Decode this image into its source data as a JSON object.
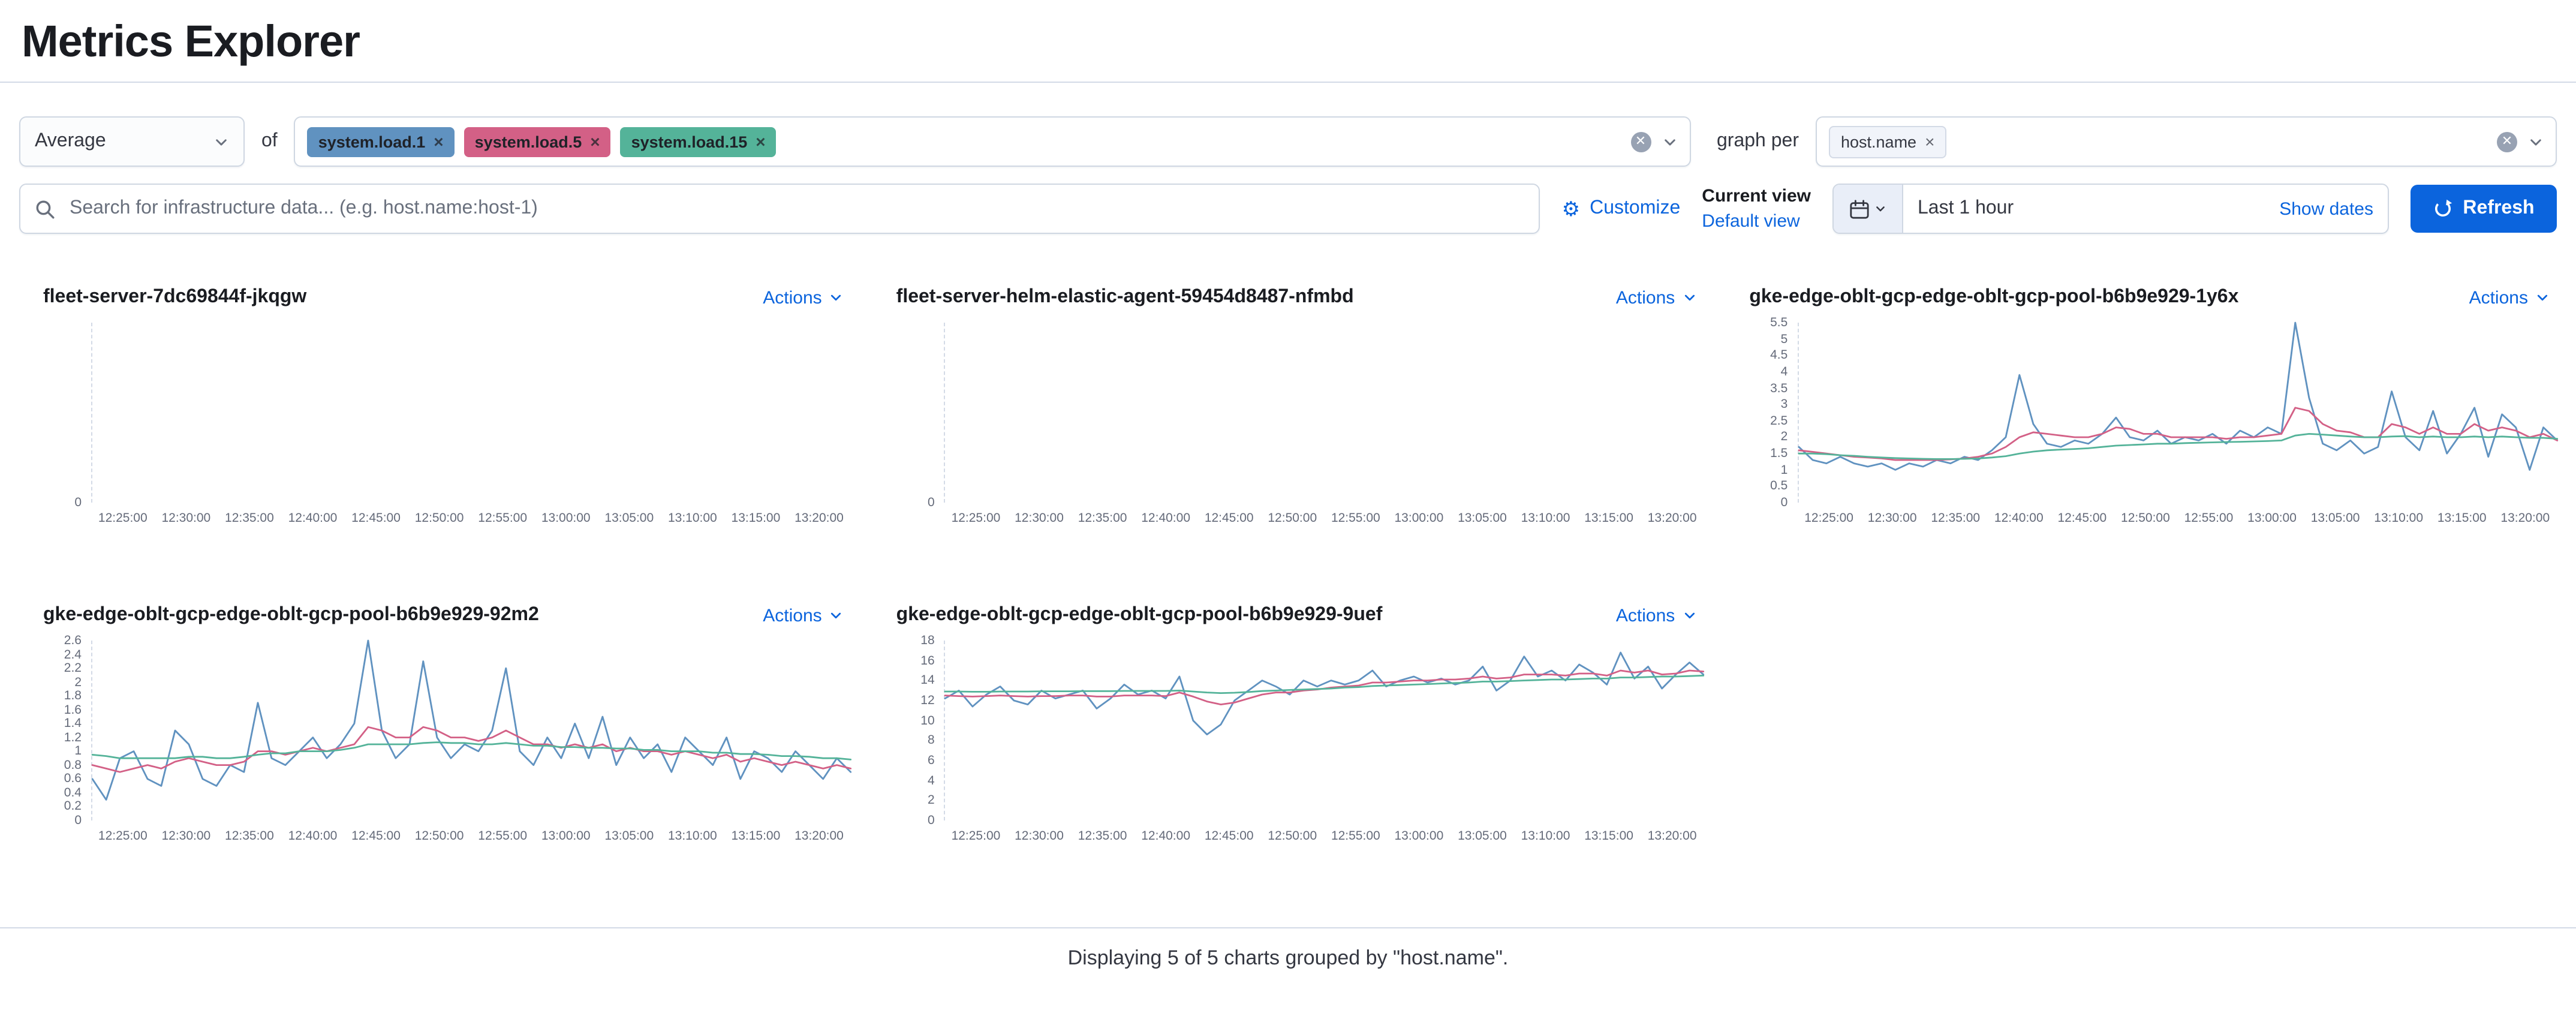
{
  "page": {
    "title": "Metrics Explorer"
  },
  "controls": {
    "aggregation": {
      "value": "Average"
    },
    "of_label": "of",
    "metrics": [
      {
        "label": "system.load.1",
        "color": "#6092C0"
      },
      {
        "label": "system.load.5",
        "color": "#D36086"
      },
      {
        "label": "system.load.15",
        "color": "#54B399"
      }
    ],
    "graph_per_label": "graph per",
    "group_by": [
      {
        "label": "host.name"
      }
    ],
    "search": {
      "placeholder": "Search for infrastructure data... (e.g. host.name:host-1)"
    },
    "customize_label": "Customize",
    "current_view_label": "Current view",
    "default_view_label": "Default view",
    "time_range": {
      "value": "Last 1 hour",
      "show_dates_label": "Show dates"
    },
    "refresh_label": "Refresh"
  },
  "icons": {
    "search": "magnifier-icon",
    "clear": "cross-in-circle-icon",
    "dropdown": "chevron-down-icon",
    "customize": "gear-icon",
    "calendar": "calendar-icon",
    "refresh": "refresh-icon",
    "remove_pill": "cross-icon"
  },
  "colors": {
    "primary": "#0b64dd",
    "link": "#0b64dd",
    "border": "#d3dae6",
    "text": "#343741"
  },
  "footer": {
    "text": "Displaying 5 of 5 charts grouped by \"host.name\"."
  },
  "chart_data": [
    {
      "type": "line",
      "title": "fleet-server-7dc69844f-jkqgw",
      "actions_label": "Actions",
      "x_ticks": [
        "12:25:00",
        "12:30:00",
        "12:35:00",
        "12:40:00",
        "12:45:00",
        "12:50:00",
        "12:55:00",
        "13:00:00",
        "13:05:00",
        "13:10:00",
        "13:15:00",
        "13:20:00"
      ],
      "y_ticks": [
        0
      ],
      "ylim": [
        0,
        1
      ],
      "grid": false,
      "legend": "none",
      "series": []
    },
    {
      "type": "line",
      "title": "fleet-server-helm-elastic-agent-59454d8487-nfmbd",
      "actions_label": "Actions",
      "x_ticks": [
        "12:25:00",
        "12:30:00",
        "12:35:00",
        "12:40:00",
        "12:45:00",
        "12:50:00",
        "12:55:00",
        "13:00:00",
        "13:05:00",
        "13:10:00",
        "13:15:00",
        "13:20:00"
      ],
      "y_ticks": [
        0
      ],
      "ylim": [
        0,
        1
      ],
      "grid": false,
      "legend": "none",
      "series": []
    },
    {
      "type": "line",
      "title": "gke-edge-oblt-gcp-edge-oblt-gcp-pool-b6b9e929-1y6x",
      "actions_label": "Actions",
      "x_ticks": [
        "12:25:00",
        "12:30:00",
        "12:35:00",
        "12:40:00",
        "12:45:00",
        "12:50:00",
        "12:55:00",
        "13:00:00",
        "13:05:00",
        "13:10:00",
        "13:15:00",
        "13:20:00"
      ],
      "y_ticks": [
        0,
        0.5,
        1,
        1.5,
        2,
        2.5,
        3,
        3.5,
        4,
        4.5,
        5,
        5.5
      ],
      "ylim": [
        0,
        5.5
      ],
      "grid": false,
      "legend": "none",
      "series": [
        {
          "name": "system.load.1",
          "color": "#6092C0",
          "values": [
            1.7,
            1.3,
            1.2,
            1.4,
            1.2,
            1.1,
            1.2,
            1.0,
            1.2,
            1.1,
            1.3,
            1.2,
            1.4,
            1.3,
            1.6,
            2.0,
            3.9,
            2.4,
            1.8,
            1.7,
            1.9,
            1.8,
            2.1,
            2.6,
            2.0,
            1.9,
            2.2,
            1.8,
            2.0,
            1.9,
            2.1,
            1.8,
            2.2,
            2.0,
            2.3,
            2.1,
            5.5,
            3.2,
            1.8,
            1.6,
            1.9,
            1.5,
            1.7,
            3.4,
            2.0,
            1.6,
            2.8,
            1.5,
            2.1,
            2.9,
            1.4,
            2.7,
            2.3,
            1.0,
            2.3,
            1.9
          ]
        },
        {
          "name": "system.load.5",
          "color": "#D36086",
          "values": [
            1.6,
            1.55,
            1.5,
            1.45,
            1.4,
            1.38,
            1.35,
            1.3,
            1.3,
            1.3,
            1.3,
            1.32,
            1.35,
            1.4,
            1.5,
            1.7,
            2.0,
            2.15,
            2.1,
            2.05,
            2.0,
            2.0,
            2.1,
            2.3,
            2.25,
            2.1,
            2.1,
            2.0,
            2.0,
            2.0,
            2.0,
            1.95,
            2.0,
            2.0,
            2.05,
            2.1,
            2.9,
            2.8,
            2.4,
            2.2,
            2.15,
            2.0,
            2.0,
            2.4,
            2.3,
            2.1,
            2.3,
            2.1,
            2.1,
            2.4,
            2.2,
            2.3,
            2.2,
            2.0,
            2.1,
            1.9
          ]
        },
        {
          "name": "system.load.15",
          "color": "#54B399",
          "values": [
            1.5,
            1.5,
            1.48,
            1.45,
            1.43,
            1.4,
            1.38,
            1.36,
            1.35,
            1.34,
            1.33,
            1.33,
            1.34,
            1.35,
            1.38,
            1.42,
            1.5,
            1.56,
            1.6,
            1.62,
            1.64,
            1.66,
            1.7,
            1.74,
            1.76,
            1.78,
            1.8,
            1.8,
            1.82,
            1.83,
            1.84,
            1.85,
            1.86,
            1.87,
            1.88,
            1.9,
            2.05,
            2.1,
            2.08,
            2.05,
            2.02,
            2.0,
            2.0,
            2.02,
            2.03,
            2.0,
            2.02,
            2.0,
            2.0,
            2.02,
            2.0,
            2.02,
            2.0,
            1.98,
            1.98,
            1.95
          ]
        }
      ]
    },
    {
      "type": "line",
      "title": "gke-edge-oblt-gcp-edge-oblt-gcp-pool-b6b9e929-92m2",
      "actions_label": "Actions",
      "x_ticks": [
        "12:25:00",
        "12:30:00",
        "12:35:00",
        "12:40:00",
        "12:45:00",
        "12:50:00",
        "12:55:00",
        "13:00:00",
        "13:05:00",
        "13:10:00",
        "13:15:00",
        "13:20:00"
      ],
      "y_ticks": [
        0,
        0.2,
        0.4,
        0.6,
        0.8,
        1,
        1.2,
        1.4,
        1.6,
        1.8,
        2,
        2.2,
        2.4,
        2.6
      ],
      "ylim": [
        0,
        2.6
      ],
      "grid": false,
      "legend": "none",
      "series": [
        {
          "name": "system.load.1",
          "color": "#6092C0",
          "values": [
            0.6,
            0.3,
            0.9,
            1.0,
            0.6,
            0.5,
            1.3,
            1.1,
            0.6,
            0.5,
            0.8,
            0.7,
            1.7,
            0.9,
            0.8,
            1.0,
            1.2,
            0.9,
            1.1,
            1.4,
            2.6,
            1.3,
            0.9,
            1.1,
            2.3,
            1.2,
            0.9,
            1.1,
            1.0,
            1.3,
            2.2,
            1.0,
            0.8,
            1.2,
            0.9,
            1.4,
            0.9,
            1.5,
            0.8,
            1.2,
            0.9,
            1.1,
            0.7,
            1.2,
            1.0,
            0.8,
            1.2,
            0.6,
            1.0,
            0.9,
            0.7,
            1.0,
            0.8,
            0.6,
            0.9,
            0.7
          ]
        },
        {
          "name": "system.load.5",
          "color": "#D36086",
          "values": [
            0.8,
            0.75,
            0.7,
            0.75,
            0.8,
            0.75,
            0.85,
            0.9,
            0.85,
            0.8,
            0.8,
            0.85,
            1.0,
            1.0,
            0.95,
            1.0,
            1.05,
            1.0,
            1.05,
            1.1,
            1.35,
            1.3,
            1.2,
            1.2,
            1.35,
            1.3,
            1.2,
            1.2,
            1.15,
            1.2,
            1.3,
            1.2,
            1.1,
            1.1,
            1.05,
            1.1,
            1.05,
            1.1,
            1.0,
            1.05,
            1.0,
            1.0,
            0.95,
            1.0,
            0.95,
            0.9,
            0.95,
            0.85,
            0.9,
            0.85,
            0.8,
            0.85,
            0.8,
            0.75,
            0.8,
            0.75
          ]
        },
        {
          "name": "system.load.15",
          "color": "#54B399",
          "values": [
            0.95,
            0.93,
            0.9,
            0.9,
            0.9,
            0.9,
            0.9,
            0.92,
            0.92,
            0.9,
            0.9,
            0.92,
            0.95,
            0.97,
            0.97,
            1.0,
            1.0,
            1.0,
            1.02,
            1.05,
            1.1,
            1.1,
            1.1,
            1.1,
            1.12,
            1.13,
            1.12,
            1.12,
            1.1,
            1.1,
            1.12,
            1.1,
            1.08,
            1.08,
            1.06,
            1.06,
            1.05,
            1.05,
            1.04,
            1.04,
            1.02,
            1.02,
            1.0,
            1.0,
            1.0,
            0.98,
            0.98,
            0.96,
            0.96,
            0.95,
            0.93,
            0.93,
            0.92,
            0.9,
            0.9,
            0.88
          ]
        }
      ]
    },
    {
      "type": "line",
      "title": "gke-edge-oblt-gcp-edge-oblt-gcp-pool-b6b9e929-9uef",
      "actions_label": "Actions",
      "x_ticks": [
        "12:25:00",
        "12:30:00",
        "12:35:00",
        "12:40:00",
        "12:45:00",
        "12:50:00",
        "12:55:00",
        "13:00:00",
        "13:05:00",
        "13:10:00",
        "13:15:00",
        "13:20:00"
      ],
      "y_ticks": [
        0,
        2,
        4,
        6,
        8,
        10,
        12,
        14,
        16,
        18
      ],
      "ylim": [
        0,
        18
      ],
      "grid": false,
      "legend": "none",
      "series": [
        {
          "name": "system.load.1",
          "color": "#6092C0",
          "values": [
            12.2,
            13.0,
            11.4,
            12.6,
            13.4,
            12.0,
            11.6,
            13.0,
            12.2,
            12.6,
            13.0,
            11.2,
            12.2,
            13.6,
            12.6,
            13.0,
            12.2,
            14.4,
            10.0,
            8.6,
            9.6,
            12.0,
            13.0,
            14.0,
            13.4,
            12.6,
            14.0,
            13.4,
            14.0,
            13.6,
            14.0,
            15.0,
            13.4,
            14.0,
            14.4,
            13.8,
            14.2,
            13.6,
            14.0,
            15.4,
            13.0,
            14.0,
            16.4,
            14.4,
            15.0,
            14.0,
            15.6,
            14.8,
            13.6,
            16.8,
            14.2,
            15.4,
            13.2,
            14.6,
            15.8,
            14.6
          ]
        },
        {
          "name": "system.load.5",
          "color": "#D36086",
          "values": [
            12.5,
            12.45,
            12.4,
            12.45,
            12.5,
            12.45,
            12.4,
            12.45,
            12.45,
            12.5,
            12.5,
            12.4,
            12.4,
            12.5,
            12.5,
            12.5,
            12.45,
            12.8,
            12.4,
            11.9,
            11.6,
            11.8,
            12.2,
            12.6,
            12.8,
            12.8,
            13.0,
            13.1,
            13.3,
            13.4,
            13.5,
            13.8,
            13.8,
            13.9,
            14.0,
            14.0,
            14.1,
            14.1,
            14.2,
            14.4,
            14.2,
            14.3,
            14.6,
            14.6,
            14.6,
            14.5,
            14.7,
            14.7,
            14.5,
            15.0,
            14.8,
            15.0,
            14.6,
            14.7,
            15.0,
            14.9
          ]
        },
        {
          "name": "system.load.15",
          "color": "#54B399",
          "values": [
            12.9,
            12.9,
            12.88,
            12.88,
            12.9,
            12.9,
            12.9,
            12.92,
            12.92,
            12.92,
            12.94,
            12.94,
            12.94,
            12.96,
            12.96,
            12.96,
            12.96,
            13.0,
            12.9,
            12.8,
            12.75,
            12.78,
            12.85,
            12.95,
            13.0,
            13.05,
            13.1,
            13.15,
            13.2,
            13.3,
            13.35,
            13.45,
            13.5,
            13.55,
            13.6,
            13.65,
            13.7,
            13.75,
            13.8,
            13.9,
            13.9,
            13.95,
            14.0,
            14.05,
            14.1,
            14.1,
            14.15,
            14.2,
            14.2,
            14.3,
            14.3,
            14.35,
            14.4,
            14.4,
            14.45,
            14.5
          ]
        }
      ]
    }
  ]
}
